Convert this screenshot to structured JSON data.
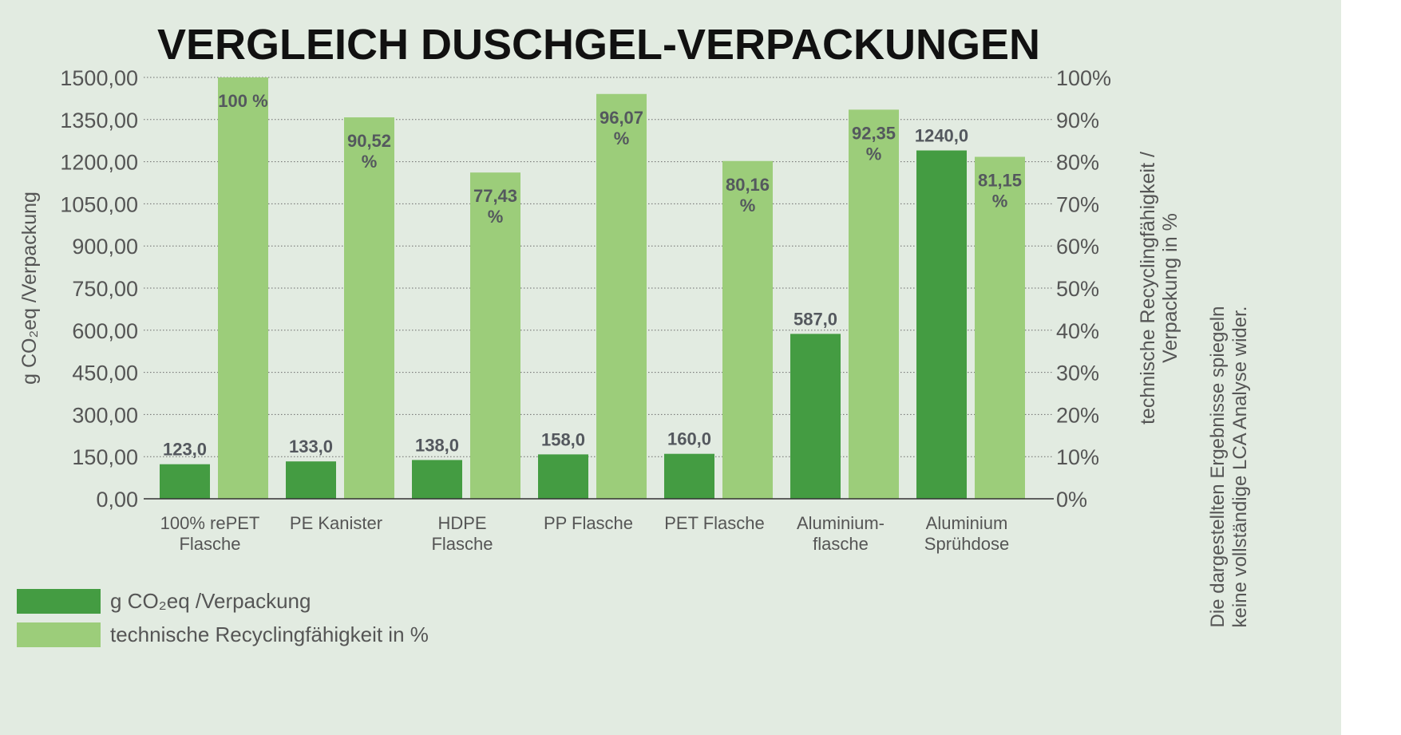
{
  "chart_data": {
    "type": "bar",
    "title": "VERGLEICH DUSCHGEL-VERPACKUNGEN",
    "categories": [
      [
        "100% rePET",
        "Flasche"
      ],
      [
        "PE Kanister"
      ],
      [
        "HDPE",
        "Flasche"
      ],
      [
        "PP Flasche"
      ],
      [
        "PET Flasche"
      ],
      [
        "Aluminium-",
        "flasche"
      ],
      [
        "Aluminium",
        "Sprühdose"
      ]
    ],
    "series": [
      {
        "name": "g CO₂eq /Verpackung",
        "axis": "left",
        "color": "#449c42",
        "values": [
          123.0,
          133.0,
          138.0,
          158.0,
          160.0,
          587.0,
          1240.0
        ],
        "labels": [
          "123,0",
          "133,0",
          "138,0",
          "158,0",
          "160,0",
          "587,0",
          "1240,0"
        ]
      },
      {
        "name": "technische Recyclingfähigkeit in %",
        "axis": "right",
        "color": "#9ccd7a",
        "values": [
          100,
          90.52,
          77.43,
          96.07,
          80.16,
          92.35,
          81.15
        ],
        "labels": [
          [
            "100 %"
          ],
          [
            "90,52",
            "%"
          ],
          [
            "77,43",
            "%"
          ],
          [
            "96,07",
            "%"
          ],
          [
            "80,16",
            "%"
          ],
          [
            "92,35",
            "%"
          ],
          [
            "81,15",
            "%"
          ]
        ]
      }
    ],
    "ylabel": "g CO₂eq /Verpackung",
    "ylabel_right": [
      "technische Recyclingfähigkeit /",
      "Verpackung in %"
    ],
    "ylim": [
      0,
      1500
    ],
    "ylim_right": [
      0,
      100
    ],
    "yticks": [
      "0,00",
      "150,00",
      "300,00",
      "450,00",
      "600,00",
      "750,00",
      "900,00",
      "1050,00",
      "1200,00",
      "1350,00",
      "1500,00"
    ],
    "yticks_right": [
      "0%",
      "10%",
      "20%",
      "30%",
      "40%",
      "50%",
      "60%",
      "70%",
      "80%",
      "90%",
      "100%"
    ],
    "grid": true,
    "legend_position": "bottom-left",
    "side_note": [
      "Die dargestellten Ergebnisse spiegeln",
      "keine vollständige LCA Analyse wider."
    ]
  }
}
